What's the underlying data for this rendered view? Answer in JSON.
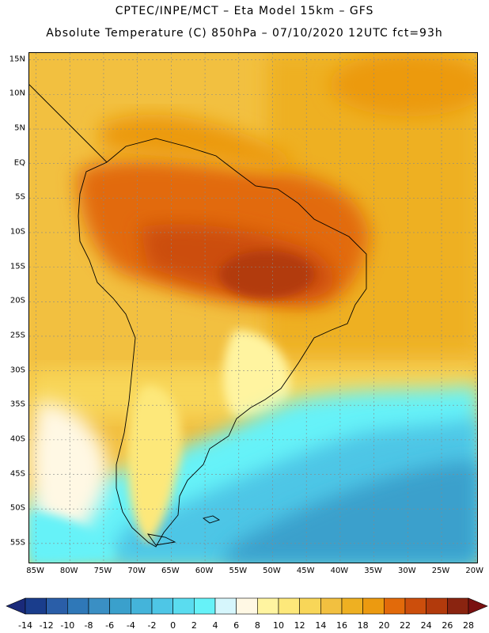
{
  "header": {
    "line1": "CPTEC/INPE/MCT –  Eta Model 15km – GFS",
    "line2": "Absolute Temperature (C) 850hPa – 07/10/2020 12UTC fct=93h"
  },
  "map": {
    "lat_labels": [
      "15N",
      "10N",
      "5N",
      "EQ",
      "5S",
      "10S",
      "15S",
      "20S",
      "25S",
      "30S",
      "35S",
      "40S",
      "45S",
      "50S",
      "55S"
    ],
    "lat_values": [
      15,
      10,
      5,
      0,
      -5,
      -10,
      -15,
      -20,
      -25,
      -30,
      -35,
      -40,
      -45,
      -50,
      -55
    ],
    "lon_labels": [
      "85W",
      "80W",
      "75W",
      "70W",
      "65W",
      "60W",
      "55W",
      "50W",
      "45W",
      "40W",
      "35W",
      "30W",
      "25W",
      "20W"
    ],
    "lon_values": [
      -85,
      -80,
      -75,
      -70,
      -65,
      -60,
      -55,
      -50,
      -45,
      -40,
      -35,
      -30,
      -25,
      -20
    ],
    "lat_range": [
      -58,
      16
    ],
    "lon_range": [
      -86,
      -19.5
    ],
    "ocean_color": "#f2c040",
    "land_outline_color": "#000000"
  },
  "colorbar": {
    "labels": [
      "-14",
      "-12",
      "-10",
      "-8",
      "-6",
      "-4",
      "-2",
      "0",
      "2",
      "4",
      "6",
      "8",
      "10",
      "12",
      "14",
      "16",
      "18",
      "20",
      "22",
      "24",
      "26",
      "28"
    ],
    "colors": [
      "#1a3d8c",
      "#2a5ea8",
      "#2f78b8",
      "#3a8fc4",
      "#3aa0cc",
      "#44b4da",
      "#4ec6e6",
      "#5adcef",
      "#66f2f8",
      "#d6f6fc",
      "#fff8e4",
      "#fff4a0",
      "#fde87a",
      "#f8d658",
      "#f2c040",
      "#eeb022",
      "#ec9a10",
      "#e26a0a",
      "#cc4e0c",
      "#b23a0c",
      "#8a2410"
    ],
    "end_low_color": "#1a2a7a",
    "end_high_color": "#7a1010"
  }
}
